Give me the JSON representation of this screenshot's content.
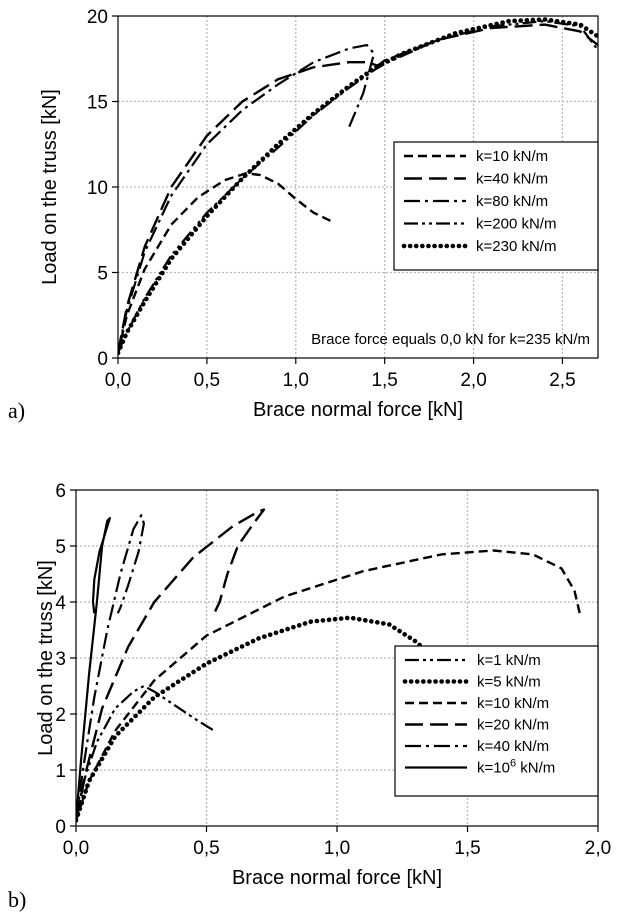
{
  "chart_data": [
    {
      "type": "line",
      "panel_label": "a)",
      "xlabel": "Brace normal force [kN]",
      "ylabel": "Load on the truss [kN]",
      "xlim": [
        0,
        2.7
      ],
      "ylim": [
        0,
        20
      ],
      "xticks": [
        "0,0",
        "0,5",
        "1,0",
        "1,5",
        "2,0",
        "2,5"
      ],
      "yticks": [
        "0",
        "5",
        "10",
        "15",
        "20"
      ],
      "grid": true,
      "legend_position": "center-right",
      "annotation": "Brace force equals 0,0 kN for k=235 kN/m",
      "series": [
        {
          "name": "k=10 kN/m",
          "style": "dash",
          "x": [
            0,
            0.05,
            0.15,
            0.3,
            0.45,
            0.6,
            0.72,
            0.8,
            0.9,
            1.0,
            1.1,
            1.2
          ],
          "y": [
            0.3,
            2.5,
            5.2,
            7.8,
            9.4,
            10.4,
            10.8,
            10.7,
            10.2,
            9.3,
            8.5,
            8.0
          ]
        },
        {
          "name": "k=40 kN/m",
          "style": "longdash",
          "x": [
            0,
            0.05,
            0.15,
            0.3,
            0.5,
            0.7,
            0.9,
            1.1,
            1.3,
            1.4,
            1.46,
            1.5,
            1.8,
            2.1,
            2.4,
            2.6,
            2.7
          ],
          "y": [
            0.3,
            3.0,
            6.5,
            10.0,
            13.0,
            15.0,
            16.3,
            17.0,
            17.3,
            17.3,
            17.1,
            17.4,
            18.6,
            19.3,
            19.5,
            19.1,
            18.3
          ]
        },
        {
          "name": "k=80 kN/m",
          "style": "dashdot",
          "x": [
            0,
            0.05,
            0.15,
            0.3,
            0.5,
            0.7,
            0.9,
            1.1,
            1.3,
            1.4,
            1.44,
            1.38,
            1.3
          ],
          "y": [
            0.3,
            2.8,
            6.2,
            9.5,
            12.5,
            14.5,
            16.0,
            17.3,
            18.1,
            18.3,
            17.8,
            15.5,
            13.5
          ]
        },
        {
          "name": "k=200 kN/m",
          "style": "dashdotdot",
          "x": [
            0,
            0.05,
            0.15,
            0.3,
            0.5,
            0.7,
            0.9,
            1.1,
            1.3,
            1.45,
            1.5,
            1.8,
            2.1,
            2.4,
            2.6,
            2.7
          ],
          "y": [
            0.3,
            1.5,
            3.5,
            6.0,
            8.5,
            10.5,
            12.3,
            14.2,
            15.8,
            16.9,
            17.2,
            18.6,
            19.4,
            19.7,
            19.4,
            18.0
          ]
        },
        {
          "name": "k=230 kN/m",
          "style": "dot",
          "x": [
            0,
            0.05,
            0.15,
            0.3,
            0.5,
            0.7,
            0.9,
            1.1,
            1.3,
            1.45,
            1.6,
            1.9,
            2.2,
            2.4,
            2.6,
            2.7
          ],
          "y": [
            0.3,
            1.5,
            3.3,
            5.8,
            8.3,
            10.5,
            12.5,
            14.3,
            15.9,
            17.0,
            17.8,
            19.0,
            19.7,
            19.8,
            19.5,
            18.8
          ]
        }
      ]
    },
    {
      "type": "line",
      "panel_label": "b)",
      "xlabel": "Brace normal force [kN]",
      "ylabel": "Load on the truss [kN]",
      "xlim": [
        0,
        2.0
      ],
      "ylim": [
        0,
        6
      ],
      "xticks": [
        "0,0",
        "0,5",
        "1,0",
        "1,5",
        "2,0"
      ],
      "yticks": [
        "0",
        "1",
        "2",
        "3",
        "4",
        "5",
        "6"
      ],
      "grid": true,
      "legend_position": "bottom-right",
      "series": [
        {
          "name": "k=1 kN/m",
          "style": "dashdotdot",
          "x": [
            0,
            0.03,
            0.08,
            0.15,
            0.22,
            0.26,
            0.3,
            0.38,
            0.46,
            0.53
          ],
          "y": [
            0.1,
            0.8,
            1.5,
            2.1,
            2.4,
            2.5,
            2.4,
            2.15,
            1.9,
            1.7
          ]
        },
        {
          "name": "k=5 kN/m",
          "style": "dot",
          "x": [
            0,
            0.05,
            0.15,
            0.3,
            0.5,
            0.7,
            0.9,
            1.05,
            1.2,
            1.3,
            1.35,
            1.42
          ],
          "y": [
            0.1,
            0.8,
            1.6,
            2.3,
            2.9,
            3.35,
            3.65,
            3.72,
            3.6,
            3.3,
            3.1,
            3.0
          ]
        },
        {
          "name": "k=10 kN/m",
          "style": "dash",
          "x": [
            0,
            0.05,
            0.15,
            0.3,
            0.5,
            0.8,
            1.1,
            1.4,
            1.6,
            1.75,
            1.86,
            1.91,
            1.93
          ],
          "y": [
            0.1,
            0.8,
            1.7,
            2.6,
            3.4,
            4.1,
            4.55,
            4.85,
            4.92,
            4.85,
            4.6,
            4.2,
            3.8
          ]
        },
        {
          "name": "k=20 kN/m",
          "style": "longdash",
          "x": [
            0,
            0.04,
            0.1,
            0.2,
            0.3,
            0.45,
            0.6,
            0.7,
            0.72,
            0.68,
            0.62,
            0.58,
            0.55,
            0.53
          ],
          "y": [
            0.1,
            1.0,
            2.1,
            3.2,
            4.0,
            4.8,
            5.35,
            5.62,
            5.65,
            5.4,
            5.0,
            4.5,
            4.0,
            3.8
          ]
        },
        {
          "name": "k=40 kN/m",
          "style": "dashdot",
          "x": [
            0,
            0.03,
            0.07,
            0.12,
            0.17,
            0.22,
            0.25,
            0.26,
            0.24,
            0.2,
            0.17,
            0.16
          ],
          "y": [
            0.1,
            1.1,
            2.3,
            3.5,
            4.5,
            5.3,
            5.55,
            5.4,
            4.9,
            4.3,
            3.9,
            3.8
          ]
        },
        {
          "name": "k=10",
          "name_superscript": "6",
          "name_suffix": " kN/m",
          "style": "solid",
          "x": [
            0,
            0.02,
            0.05,
            0.08,
            0.1,
            0.12,
            0.13,
            0.12,
            0.09,
            0.07,
            0.065,
            0.07
          ],
          "y": [
            0.1,
            1.2,
            2.7,
            4.0,
            5.0,
            5.45,
            5.5,
            5.35,
            4.9,
            4.4,
            4.0,
            3.8
          ]
        }
      ]
    }
  ]
}
